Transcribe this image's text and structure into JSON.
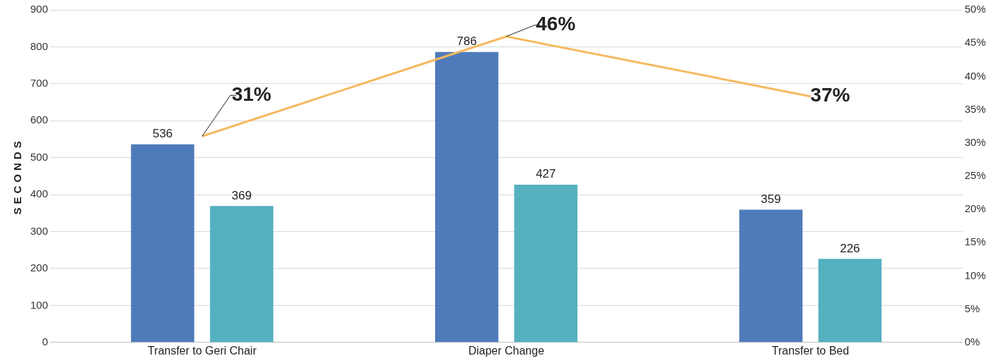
{
  "chart_data": {
    "type": "bar",
    "ylabel": "SECONDS",
    "categories": [
      "Transfer to Geri Chair",
      "Diaper Change",
      "Transfer to Bed"
    ],
    "series": [
      {
        "color": "#4f7bba",
        "values": [
          536,
          786,
          359
        ],
        "value_labels": [
          "536",
          "786",
          "359"
        ]
      },
      {
        "color": "#55b0bf",
        "values": [
          369,
          427,
          226
        ],
        "value_labels": [
          "369",
          "427",
          "226"
        ]
      },
      {
        "type": "line",
        "axis": "y2",
        "color": "#f5b95f",
        "values": [
          31,
          46,
          37
        ],
        "value_labels": [
          "31%",
          "46%",
          "37%"
        ]
      }
    ],
    "ylim": [
      0,
      900
    ],
    "yticks": [
      0,
      100,
      200,
      300,
      400,
      500,
      600,
      700,
      800,
      900
    ],
    "y2lim": [
      0,
      50
    ],
    "y2ticks": [
      {
        "value": 0,
        "label": "0%"
      },
      {
        "value": 5,
        "label": "5%"
      },
      {
        "value": 10,
        "label": "10%"
      },
      {
        "value": 15,
        "label": "15%"
      },
      {
        "value": 20,
        "label": "20%"
      },
      {
        "value": 25,
        "label": "25%"
      },
      {
        "value": 30,
        "label": "30%"
      },
      {
        "value": 35,
        "label": "35%"
      },
      {
        "value": 40,
        "label": "40%"
      },
      {
        "value": 45,
        "label": "45%"
      },
      {
        "value": 50,
        "label": "50%"
      }
    ],
    "grid": "y",
    "legend": false,
    "marker": "none"
  }
}
